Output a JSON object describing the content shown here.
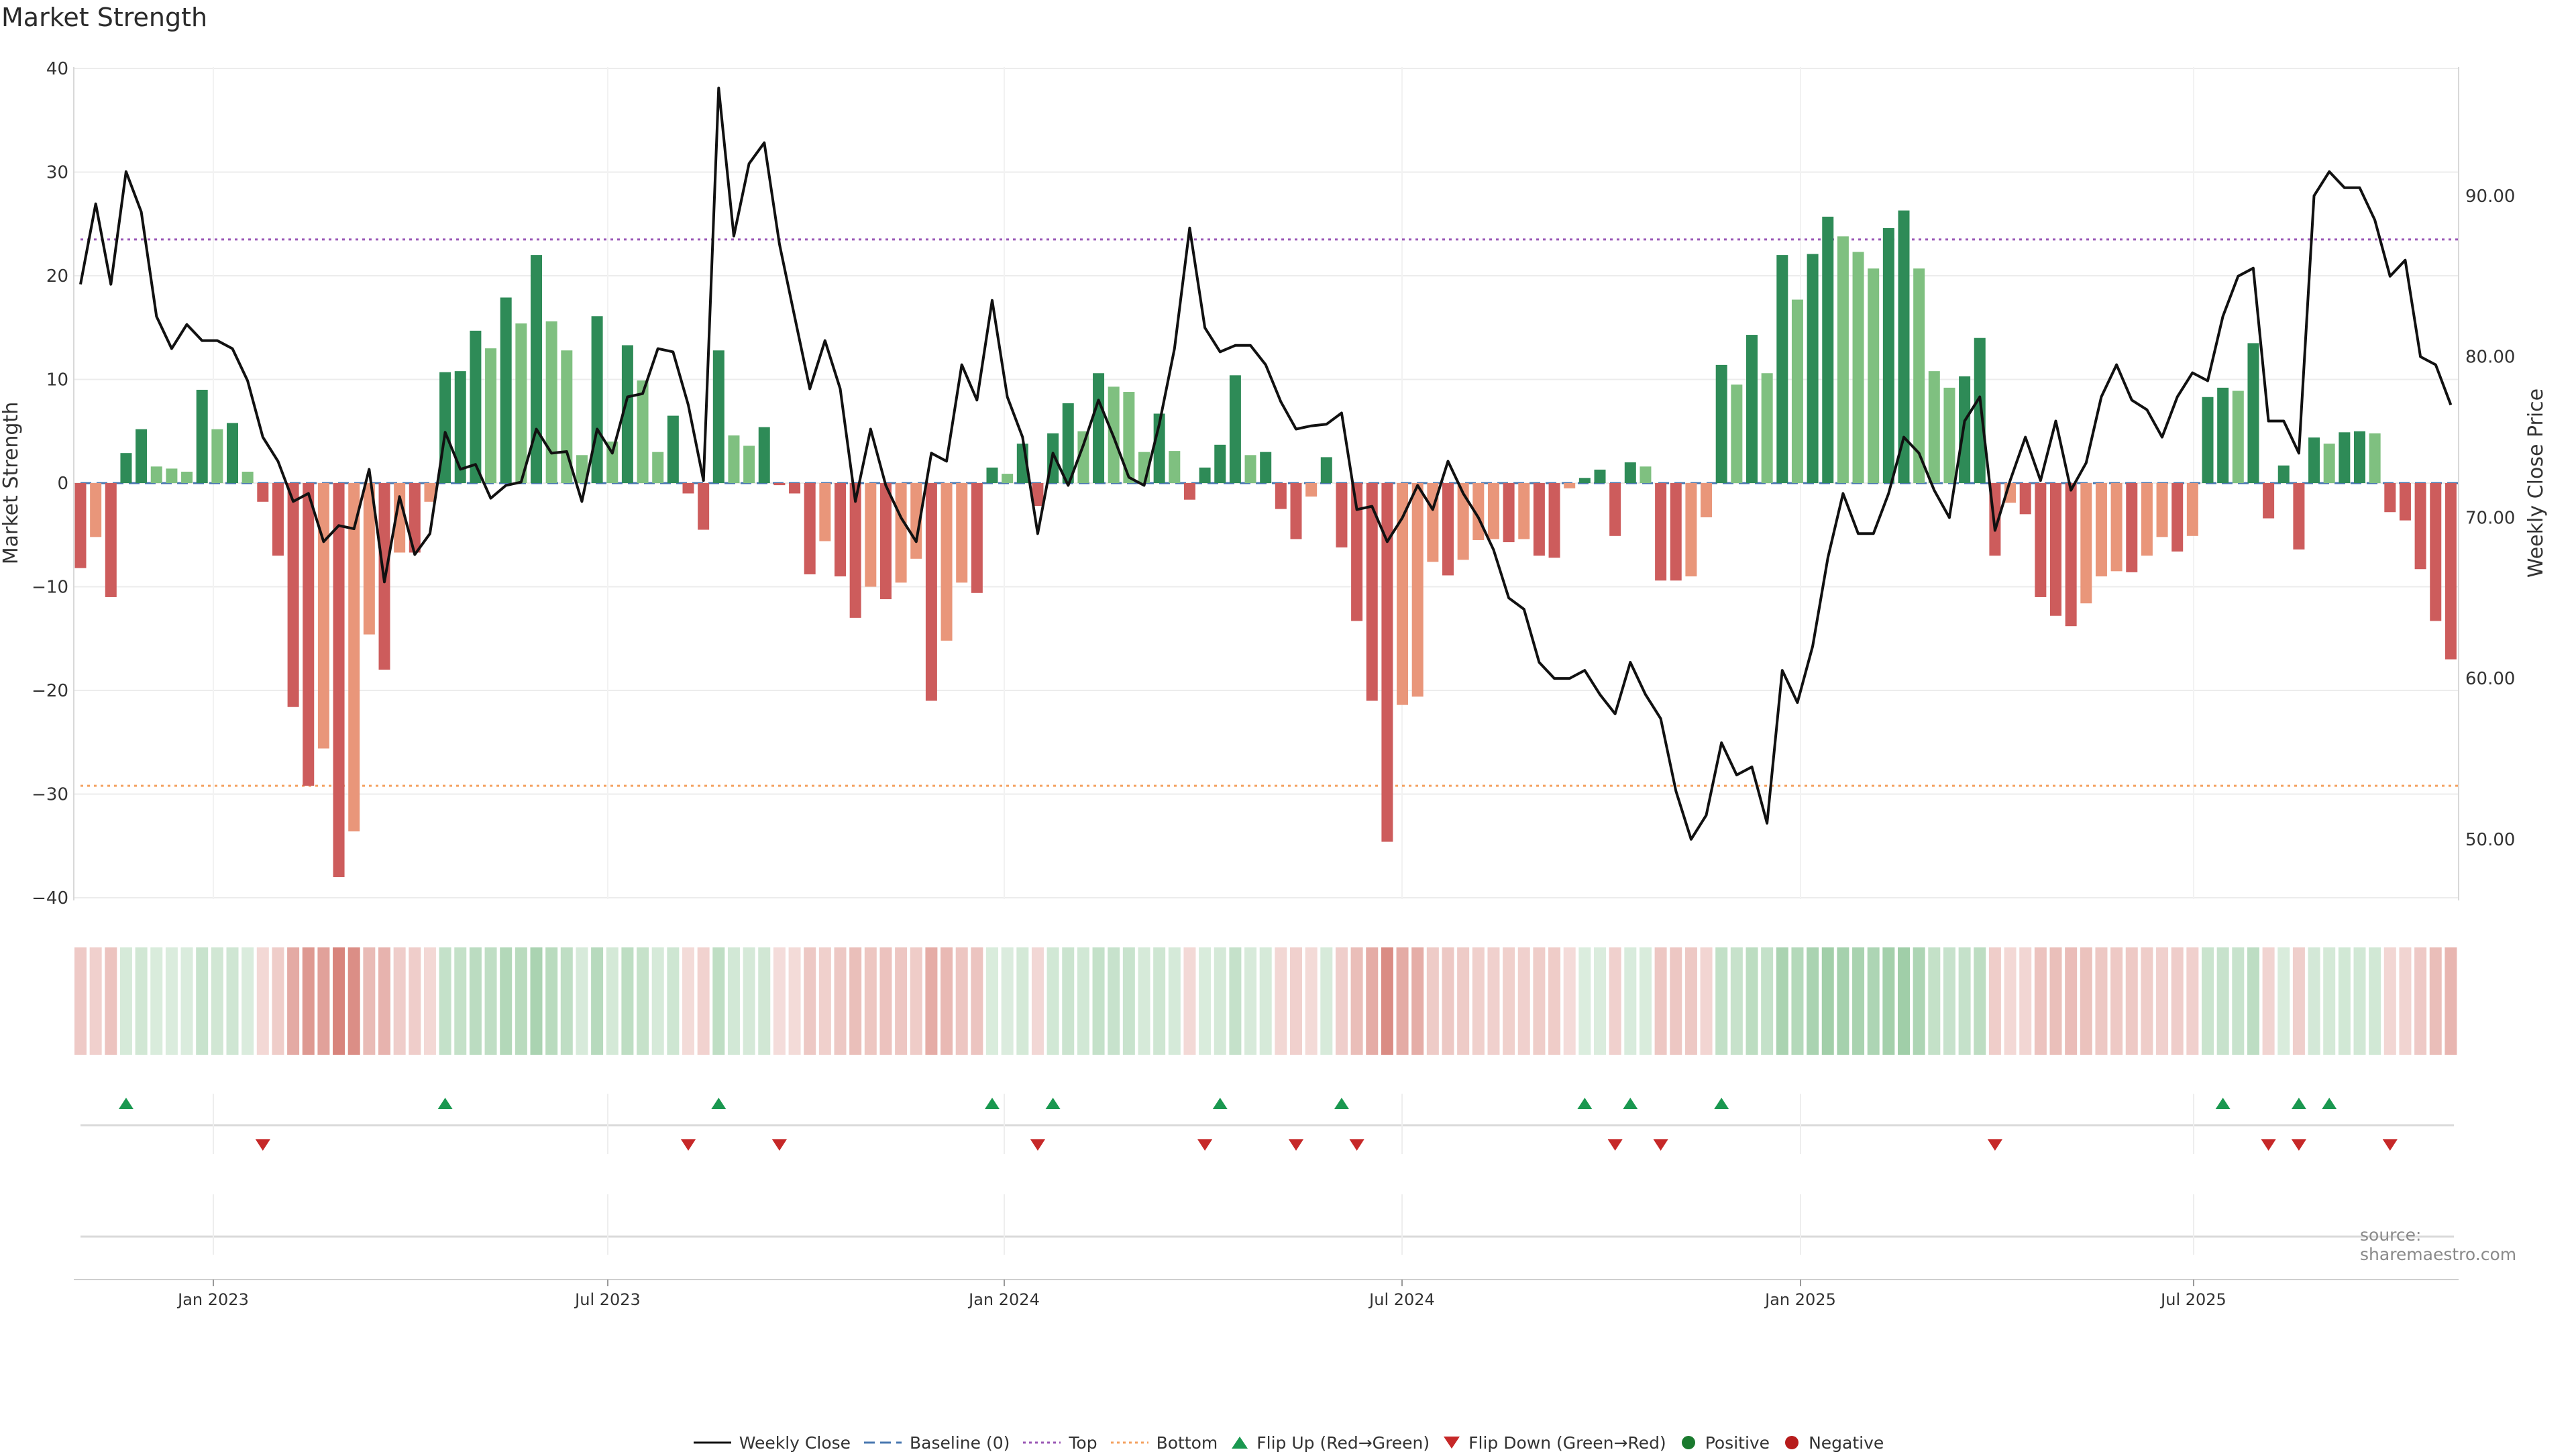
{
  "title": "Market Strength",
  "source": "source: sharemaestro.com",
  "colors": {
    "strong_green": "#2e8b57",
    "light_green": "#7fc080",
    "strong_red": "#cd5c5c",
    "light_red": "#e9967a",
    "line": "#111111",
    "top_line": "#9b59b6",
    "bottom_line": "#f4a261",
    "baseline": "#4a78b0",
    "flip_up": "#1a9850",
    "flip_down": "#c62828"
  },
  "legend": [
    {
      "key": "line",
      "label": "Weekly Close"
    },
    {
      "key": "baseline",
      "label": "Baseline (0)"
    },
    {
      "key": "top",
      "label": "Top"
    },
    {
      "key": "bottom",
      "label": "Bottom"
    },
    {
      "key": "flip_up",
      "label": "Flip Up (Red→Green)"
    },
    {
      "key": "flip_down",
      "label": "Flip Down (Green→Red)"
    },
    {
      "key": "positive",
      "label": "Positive"
    },
    {
      "key": "negative",
      "label": "Negative"
    }
  ],
  "chart_data": {
    "type": "bar",
    "ylabel": "Market Strength",
    "y2label": "Weekly Close Price",
    "ylim": [
      -41,
      40
    ],
    "y2lim": [
      46.2,
      98.0
    ],
    "yticks": [
      40,
      30,
      20,
      10,
      0,
      -10,
      -20,
      -30,
      -40
    ],
    "ytick_labels": [
      "40",
      "30",
      "20",
      "10",
      "0",
      "−10",
      "−20",
      "−30",
      "−40"
    ],
    "y2ticks": [
      90,
      80,
      70,
      60,
      50
    ],
    "y2tick_labels": [
      "90.00",
      "80.00",
      "70.00",
      "60.00",
      "50.00"
    ],
    "x_dates": [
      "Jan 2023",
      "Jul 2023",
      "Jan 2024",
      "Jul 2024",
      "Jan 2025",
      "Jul 2025"
    ],
    "top": 23.5,
    "bottom": -29.2,
    "grid": true,
    "legend_position": "bottom",
    "strength": [
      -8.2,
      -5.2,
      -11,
      2.9,
      5.2,
      1.6,
      1.4,
      1.1,
      9,
      5.2,
      5.8,
      1.1,
      -1.8,
      -7,
      -21.6,
      -29.2,
      -25.6,
      -38,
      -33.6,
      -14.6,
      -18,
      -6.7,
      -6.7,
      -1.8,
      10.7,
      10.8,
      14.7,
      13,
      17.9,
      15.4,
      22,
      15.6,
      12.8,
      2.7,
      16.1,
      4,
      13.3,
      9.9,
      3,
      6.5,
      -1,
      -4.5,
      12.8,
      4.6,
      3.6,
      5.4,
      -0.2,
      -1,
      -8.8,
      -5.6,
      -9,
      -13,
      -10,
      -11.2,
      -9.6,
      -7.3,
      -21,
      -15.2,
      -9.6,
      -10.6,
      1.5,
      0.9,
      3.8,
      -2.2,
      4.8,
      7.7,
      5,
      10.6,
      9.3,
      8.8,
      3,
      6.7,
      3.1,
      -1.6,
      1.5,
      3.7,
      10.4,
      2.7,
      3,
      -2.5,
      -5.4,
      -1.3,
      2.5,
      -6.2,
      -13.3,
      -21,
      -34.6,
      -21.4,
      -20.6,
      -7.6,
      -8.9,
      -7.4,
      -5.5,
      -5.4,
      -5.7,
      -5.4,
      -7,
      -7.2,
      -0.5,
      0.5,
      1.3,
      -5.1,
      2,
      1.6,
      -9.4,
      -9.4,
      -9,
      -3.3,
      11.4,
      9.5,
      14.3,
      10.6,
      22,
      17.7,
      22.1,
      25.7,
      23.8,
      22.3,
      20.7,
      24.6,
      26.3,
      20.7,
      10.8,
      9.2,
      10.3,
      14,
      -7,
      -1.9,
      -3,
      -11,
      -12.8,
      -13.8,
      -11.6,
      -9,
      -8.5,
      -8.6,
      -7,
      -5.2,
      -6.6,
      -5.1,
      8.3,
      9.2,
      8.9,
      13.5,
      -3.4,
      1.7,
      -6.4,
      4.4,
      3.8,
      4.9,
      5,
      4.8,
      -2.8,
      -3.6,
      -8.3,
      -13.3,
      -17
    ],
    "weekly_close": [
      84.5,
      89.5,
      84.5,
      91.5,
      89,
      82.5,
      80.5,
      82,
      81,
      81,
      80.5,
      78.5,
      75,
      73.5,
      71,
      71.5,
      68.5,
      69.5,
      69.3,
      73,
      66,
      71.3,
      67.7,
      69,
      75.3,
      73,
      73.3,
      71.2,
      72,
      72.2,
      75.5,
      74,
      74.1,
      71,
      75.5,
      74,
      77.5,
      77.7,
      80.5,
      80.3,
      77,
      72.3,
      96.7,
      87.5,
      92,
      93.3,
      87,
      82.5,
      78,
      81,
      78,
      71,
      75.5,
      72,
      70,
      68.5,
      74,
      73.5,
      79.5,
      77.3,
      83.5,
      77.5,
      75,
      69,
      74,
      72,
      74.5,
      77.3,
      75,
      72.5,
      72,
      75.8,
      80.5,
      88,
      81.8,
      80.3,
      80.7,
      80.7,
      79.5,
      77.2,
      75.5,
      75.7,
      75.8,
      76.5,
      70.5,
      70.7,
      68.5,
      70,
      72,
      70.5,
      73.5,
      71.5,
      70,
      68,
      65,
      64.3,
      61,
      60,
      60,
      60.5,
      59,
      57.8,
      61,
      59,
      57.5,
      53,
      50,
      51.5,
      56,
      54,
      54.5,
      51,
      60.5,
      58.5,
      62,
      67.5,
      71.5,
      69,
      69,
      71.5,
      75,
      74,
      71.7,
      70,
      76,
      77.5,
      69.2,
      72.3,
      75,
      72.3,
      76,
      71.7,
      73.4,
      77.5,
      79.5,
      77.3,
      76.7,
      75,
      77.5,
      79,
      78.5,
      82.5,
      85,
      85.5,
      76,
      76,
      74,
      90,
      91.5,
      90.5,
      90.5,
      88.5,
      85,
      86,
      80,
      79.5,
      77
    ],
    "flip_up_indices": [
      3,
      24,
      42,
      60,
      64,
      75,
      83,
      99,
      102,
      108,
      141,
      146,
      148
    ],
    "flip_down_indices": [
      12,
      40,
      46,
      63,
      74,
      80,
      84,
      101,
      104,
      126,
      144,
      146,
      152
    ]
  }
}
